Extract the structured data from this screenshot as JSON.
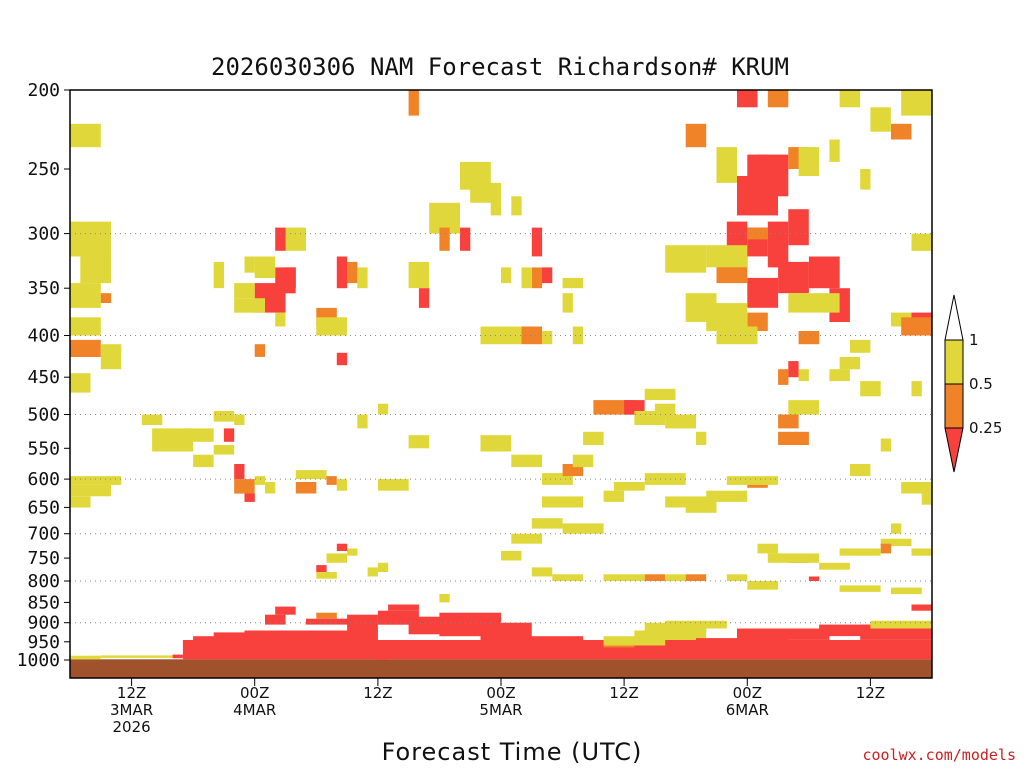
{
  "chart_data": {
    "type": "heatmap",
    "title": "2026030306 NAM Forecast Richardson# KRUM",
    "xlabel": "Forecast Time (UTC)",
    "ylabel": "",
    "x_unit": "forecast hours from 06Z 3 Mar 2026",
    "xlim": [
      0,
      84
    ],
    "x_ticks": [
      {
        "hour": 6,
        "lines": [
          "12Z",
          "3MAR",
          "2026"
        ]
      },
      {
        "hour": 18,
        "lines": [
          "00Z",
          "4MAR"
        ]
      },
      {
        "hour": 30,
        "lines": [
          "12Z"
        ]
      },
      {
        "hour": 42,
        "lines": [
          "00Z",
          "5MAR"
        ]
      },
      {
        "hour": 54,
        "lines": [
          "12Z"
        ]
      },
      {
        "hour": 66,
        "lines": [
          "00Z",
          "6MAR"
        ]
      },
      {
        "hour": 78,
        "lines": [
          "12Z"
        ]
      }
    ],
    "y_axis": "pressure (hPa), log scale, inverted",
    "ylim": [
      1000,
      200
    ],
    "y_ticks": [
      200,
      250,
      300,
      350,
      400,
      450,
      500,
      550,
      600,
      650,
      700,
      750,
      800,
      850,
      900,
      950,
      1000
    ],
    "dotted_grid_levels": [
      300,
      400,
      500,
      600,
      700,
      800,
      900
    ],
    "colorbar": {
      "labels": [
        "1",
        "0.5",
        "0.25"
      ],
      "classes": [
        {
          "range": "0.5 - 1",
          "color": "#e0d83a"
        },
        {
          "range": "0.25 - 0.5",
          "color": "#f08228"
        },
        {
          "range": "< 0.25",
          "color": "#f8403c"
        }
      ],
      "upper_arrow_color": "#ffffff",
      "lower_arrow_color": "#f8403c"
    },
    "class_colors": {
      "Y": "#e0d83a",
      "O": "#f08228",
      "R": "#f8403c"
    },
    "ground_color": "#a0522d",
    "note": "Cells: [hour_start, hour_end, p_bottom_hPa, p_top_hPa, class]; Y = 0.5-1, O = 0.25-0.5, R = <0.25",
    "cells": [
      [
        0,
        84,
        1010,
        998,
        "G"
      ],
      [
        0,
        3,
        998,
        988,
        "Y"
      ],
      [
        3,
        10,
        994,
        987,
        "Y"
      ],
      [
        10,
        11,
        995,
        985,
        "R"
      ],
      [
        11,
        84,
        998,
        945,
        "R"
      ],
      [
        12,
        18,
        965,
        935,
        "R"
      ],
      [
        14,
        18,
        940,
        925,
        "R"
      ],
      [
        17,
        30,
        945,
        920,
        "R"
      ],
      [
        19,
        21,
        905,
        880,
        "R"
      ],
      [
        20,
        22,
        880,
        860,
        "R"
      ],
      [
        24,
        26,
        890,
        875,
        "O"
      ],
      [
        23,
        28,
        905,
        890,
        "R"
      ],
      [
        27,
        30,
        925,
        880,
        "R"
      ],
      [
        30,
        34,
        905,
        870,
        "R"
      ],
      [
        31,
        34,
        870,
        855,
        "R"
      ],
      [
        33,
        37,
        930,
        885,
        "R"
      ],
      [
        36,
        42,
        935,
        875,
        "R"
      ],
      [
        40,
        45,
        950,
        900,
        "R"
      ],
      [
        44,
        50,
        965,
        935,
        "R"
      ],
      [
        50,
        56,
        985,
        965,
        "R"
      ],
      [
        52,
        55,
        965,
        945,
        "O"
      ],
      [
        52,
        58,
        960,
        935,
        "Y"
      ],
      [
        55,
        62,
        945,
        920,
        "Y"
      ],
      [
        56,
        62,
        925,
        900,
        "Y"
      ],
      [
        58,
        64,
        915,
        895,
        "Y"
      ],
      [
        61,
        66,
        970,
        940,
        "R"
      ],
      [
        65,
        70,
        950,
        915,
        "R"
      ],
      [
        69,
        74,
        945,
        915,
        "R"
      ],
      [
        73,
        79,
        935,
        905,
        "R"
      ],
      [
        77,
        84,
        945,
        905,
        "R"
      ],
      [
        78,
        84,
        915,
        895,
        "Y"
      ],
      [
        30,
        31,
        1000,
        990,
        "R"
      ],
      [
        65,
        67,
        210,
        200,
        "R"
      ],
      [
        66,
        68,
        265,
        240,
        "R"
      ],
      [
        65,
        69,
        285,
        255,
        "R"
      ],
      [
        67,
        70,
        270,
        240,
        "R"
      ],
      [
        64,
        66,
        330,
        290,
        "R"
      ],
      [
        66,
        68,
        320,
        295,
        "R"
      ],
      [
        68,
        70,
        330,
        290,
        "R"
      ],
      [
        70,
        72,
        310,
        280,
        "R"
      ],
      [
        69,
        72,
        355,
        325,
        "R"
      ],
      [
        66,
        69,
        370,
        340,
        "R"
      ],
      [
        72,
        75,
        350,
        320,
        "R"
      ],
      [
        74,
        76,
        385,
        350,
        "R"
      ],
      [
        63,
        66,
        345,
        320,
        "O"
      ],
      [
        66,
        68,
        305,
        295,
        "O"
      ],
      [
        68,
        70,
        210,
        200,
        "O"
      ],
      [
        70,
        72,
        250,
        235,
        "O"
      ],
      [
        60,
        62,
        235,
        220,
        "O"
      ],
      [
        71,
        73,
        410,
        395,
        "O"
      ],
      [
        66,
        68,
        395,
        375,
        "O"
      ],
      [
        69,
        71,
        520,
        500,
        "O"
      ],
      [
        69,
        72,
        545,
        525,
        "O"
      ],
      [
        66,
        68,
        615,
        600,
        "O"
      ],
      [
        70,
        72,
        760,
        745,
        "R"
      ],
      [
        72,
        73,
        800,
        790,
        "R"
      ],
      [
        63,
        65,
        260,
        235,
        "Y"
      ],
      [
        71,
        73,
        255,
        235,
        "Y"
      ],
      [
        58,
        62,
        335,
        310,
        "Y"
      ],
      [
        62,
        66,
        330,
        310,
        "Y"
      ],
      [
        60,
        63,
        385,
        355,
        "Y"
      ],
      [
        62,
        66,
        395,
        365,
        "Y"
      ],
      [
        70,
        75,
        375,
        355,
        "Y"
      ],
      [
        63,
        67,
        410,
        390,
        "Y"
      ],
      [
        64,
        69,
        610,
        595,
        "Y"
      ],
      [
        62,
        66,
        640,
        620,
        "Y"
      ],
      [
        70,
        73,
        500,
        480,
        "Y"
      ],
      [
        67,
        69,
        740,
        720,
        "Y"
      ],
      [
        68,
        73,
        760,
        740,
        "Y"
      ],
      [
        73,
        76,
        775,
        760,
        "Y"
      ],
      [
        70,
        71,
        450,
        430,
        "R"
      ],
      [
        69,
        70,
        460,
        440,
        "O"
      ],
      [
        18,
        21,
        375,
        345,
        "R"
      ],
      [
        20,
        22,
        355,
        330,
        "R"
      ],
      [
        20,
        21,
        315,
        295,
        "R"
      ],
      [
        16,
        18,
        360,
        345,
        "Y"
      ],
      [
        16,
        19,
        375,
        360,
        "Y"
      ],
      [
        18,
        20,
        340,
        320,
        "Y"
      ],
      [
        21,
        22,
        350,
        330,
        "R"
      ],
      [
        21,
        23,
        315,
        295,
        "Y"
      ],
      [
        14,
        15,
        350,
        325,
        "Y"
      ],
      [
        17,
        18,
        335,
        320,
        "Y"
      ],
      [
        26,
        27,
        350,
        320,
        "R"
      ],
      [
        27,
        28,
        345,
        325,
        "O"
      ],
      [
        24,
        26,
        390,
        370,
        "O"
      ],
      [
        24,
        27,
        400,
        380,
        "Y"
      ],
      [
        26,
        27,
        435,
        420,
        "R"
      ],
      [
        18,
        19,
        425,
        410,
        "O"
      ],
      [
        20,
        21,
        390,
        375,
        "Y"
      ],
      [
        28,
        29,
        350,
        330,
        "Y"
      ],
      [
        33,
        35,
        350,
        325,
        "Y"
      ],
      [
        34,
        35,
        370,
        350,
        "R"
      ],
      [
        35,
        38,
        300,
        275,
        "Y"
      ],
      [
        36,
        37,
        315,
        295,
        "O"
      ],
      [
        38,
        39,
        315,
        295,
        "R"
      ],
      [
        38,
        41,
        265,
        245,
        "Y"
      ],
      [
        39,
        42,
        275,
        260,
        "Y"
      ],
      [
        41,
        42,
        285,
        270,
        "Y"
      ],
      [
        43,
        44,
        285,
        270,
        "Y"
      ],
      [
        45,
        46,
        320,
        295,
        "R"
      ],
      [
        45,
        46,
        350,
        330,
        "O"
      ],
      [
        46,
        47,
        345,
        330,
        "R"
      ],
      [
        40,
        42,
        410,
        390,
        "Y"
      ],
      [
        42,
        44,
        410,
        390,
        "Y"
      ],
      [
        44,
        46,
        410,
        390,
        "O"
      ],
      [
        46,
        47,
        410,
        395,
        "Y"
      ],
      [
        48,
        49,
        375,
        355,
        "Y"
      ],
      [
        49,
        50,
        410,
        390,
        "Y"
      ],
      [
        44,
        45,
        350,
        330,
        "Y"
      ],
      [
        42,
        43,
        345,
        330,
        "Y"
      ],
      [
        48,
        50,
        350,
        340,
        "Y"
      ],
      [
        33,
        34,
        215,
        200,
        "O"
      ],
      [
        0,
        3,
        235,
        220,
        "Y"
      ],
      [
        0,
        4,
        320,
        290,
        "Y"
      ],
      [
        1,
        4,
        345,
        320,
        "Y"
      ],
      [
        0,
        3,
        370,
        345,
        "Y"
      ],
      [
        3,
        4,
        365,
        355,
        "O"
      ],
      [
        0,
        3,
        400,
        380,
        "Y"
      ],
      [
        0,
        3,
        425,
        405,
        "O"
      ],
      [
        3,
        5,
        440,
        410,
        "Y"
      ],
      [
        0,
        2,
        470,
        445,
        "Y"
      ],
      [
        0,
        5,
        610,
        595,
        "Y"
      ],
      [
        0,
        4,
        630,
        610,
        "Y"
      ],
      [
        0,
        2,
        650,
        630,
        "Y"
      ],
      [
        7,
        9,
        515,
        500,
        "Y"
      ],
      [
        8,
        12,
        555,
        520,
        "Y"
      ],
      [
        11,
        14,
        540,
        520,
        "Y"
      ],
      [
        14,
        16,
        510,
        495,
        "Y"
      ],
      [
        16,
        17,
        515,
        500,
        "Y"
      ],
      [
        15,
        16,
        540,
        520,
        "R"
      ],
      [
        16,
        17,
        600,
        575,
        "R"
      ],
      [
        16,
        18,
        625,
        600,
        "O"
      ],
      [
        17,
        18,
        640,
        625,
        "R"
      ],
      [
        18,
        19,
        610,
        595,
        "Y"
      ],
      [
        19,
        20,
        625,
        605,
        "Y"
      ],
      [
        22,
        24,
        625,
        605,
        "O"
      ],
      [
        22,
        25,
        600,
        585,
        "Y"
      ],
      [
        25,
        26,
        610,
        595,
        "O"
      ],
      [
        26,
        27,
        620,
        600,
        "Y"
      ],
      [
        30,
        33,
        620,
        600,
        "Y"
      ],
      [
        33,
        35,
        550,
        530,
        "Y"
      ],
      [
        28,
        29,
        520,
        500,
        "Y"
      ],
      [
        30,
        31,
        500,
        485,
        "Y"
      ],
      [
        12,
        14,
        580,
        560,
        "Y"
      ],
      [
        14,
        16,
        560,
        545,
        "Y"
      ],
      [
        24,
        25,
        780,
        765,
        "R"
      ],
      [
        25,
        27,
        760,
        740,
        "Y"
      ],
      [
        26,
        27,
        735,
        720,
        "R"
      ],
      [
        27,
        28,
        745,
        730,
        "Y"
      ],
      [
        24,
        26,
        795,
        780,
        "Y"
      ],
      [
        29,
        30,
        790,
        770,
        "Y"
      ],
      [
        30,
        31,
        780,
        760,
        "Y"
      ],
      [
        36,
        37,
        850,
        830,
        "Y"
      ],
      [
        40,
        43,
        555,
        530,
        "Y"
      ],
      [
        43,
        46,
        580,
        560,
        "Y"
      ],
      [
        46,
        49,
        610,
        590,
        "Y"
      ],
      [
        48,
        50,
        595,
        575,
        "O"
      ],
      [
        49,
        51,
        580,
        560,
        "Y"
      ],
      [
        50,
        52,
        545,
        525,
        "Y"
      ],
      [
        51,
        55,
        500,
        480,
        "O"
      ],
      [
        54,
        56,
        500,
        480,
        "R"
      ],
      [
        55,
        58,
        515,
        495,
        "Y"
      ],
      [
        57,
        59,
        505,
        485,
        "Y"
      ],
      [
        58,
        61,
        520,
        500,
        "Y"
      ],
      [
        61,
        62,
        545,
        525,
        "Y"
      ],
      [
        56,
        59,
        480,
        465,
        "Y"
      ],
      [
        52,
        54,
        640,
        620,
        "Y"
      ],
      [
        53,
        56,
        620,
        605,
        "Y"
      ],
      [
        56,
        60,
        610,
        590,
        "Y"
      ],
      [
        58,
        63,
        650,
        630,
        "Y"
      ],
      [
        60,
        63,
        660,
        645,
        "Y"
      ],
      [
        46,
        50,
        650,
        630,
        "Y"
      ],
      [
        45,
        48,
        690,
        670,
        "Y"
      ],
      [
        48,
        52,
        700,
        680,
        "Y"
      ],
      [
        43,
        46,
        720,
        700,
        "Y"
      ],
      [
        42,
        44,
        755,
        735,
        "Y"
      ],
      [
        45,
        47,
        790,
        770,
        "Y"
      ],
      [
        47,
        50,
        800,
        785,
        "Y"
      ],
      [
        52,
        56,
        800,
        785,
        "Y"
      ],
      [
        56,
        58,
        800,
        785,
        "O"
      ],
      [
        58,
        60,
        800,
        785,
        "Y"
      ],
      [
        60,
        62,
        800,
        785,
        "O"
      ],
      [
        64,
        66,
        800,
        785,
        "Y"
      ],
      [
        66,
        69,
        820,
        800,
        "Y"
      ],
      [
        71,
        72,
        455,
        440,
        "Y"
      ],
      [
        74,
        76,
        455,
        440,
        "Y"
      ],
      [
        77,
        79,
        475,
        455,
        "Y"
      ],
      [
        82,
        83,
        475,
        455,
        "Y"
      ],
      [
        79,
        80,
        555,
        535,
        "Y"
      ],
      [
        76,
        78,
        595,
        575,
        "Y"
      ],
      [
        81,
        84,
        625,
        605,
        "Y"
      ],
      [
        83,
        84,
        645,
        625,
        "Y"
      ],
      [
        80,
        81,
        700,
        680,
        "Y"
      ],
      [
        79,
        82,
        725,
        710,
        "Y"
      ],
      [
        79,
        80,
        740,
        720,
        "O"
      ],
      [
        82,
        84,
        745,
        730,
        "Y"
      ],
      [
        75,
        79,
        745,
        730,
        "Y"
      ],
      [
        75,
        79,
        825,
        810,
        "Y"
      ],
      [
        80,
        83,
        830,
        815,
        "Y"
      ],
      [
        82,
        84,
        870,
        855,
        "R"
      ],
      [
        78,
        80,
        225,
        210,
        "Y"
      ],
      [
        80,
        82,
        230,
        220,
        "O"
      ],
      [
        81,
        84,
        215,
        200,
        "Y"
      ],
      [
        75,
        77,
        210,
        200,
        "Y"
      ],
      [
        74,
        75,
        245,
        230,
        "Y"
      ],
      [
        77,
        78,
        265,
        250,
        "Y"
      ],
      [
        82,
        84,
        315,
        300,
        "Y"
      ],
      [
        82,
        84,
        395,
        375,
        "R"
      ],
      [
        80,
        82,
        390,
        375,
        "Y"
      ],
      [
        81,
        84,
        400,
        380,
        "O"
      ],
      [
        76,
        78,
        420,
        405,
        "Y"
      ],
      [
        75,
        77,
        440,
        425,
        "Y"
      ]
    ]
  }
}
